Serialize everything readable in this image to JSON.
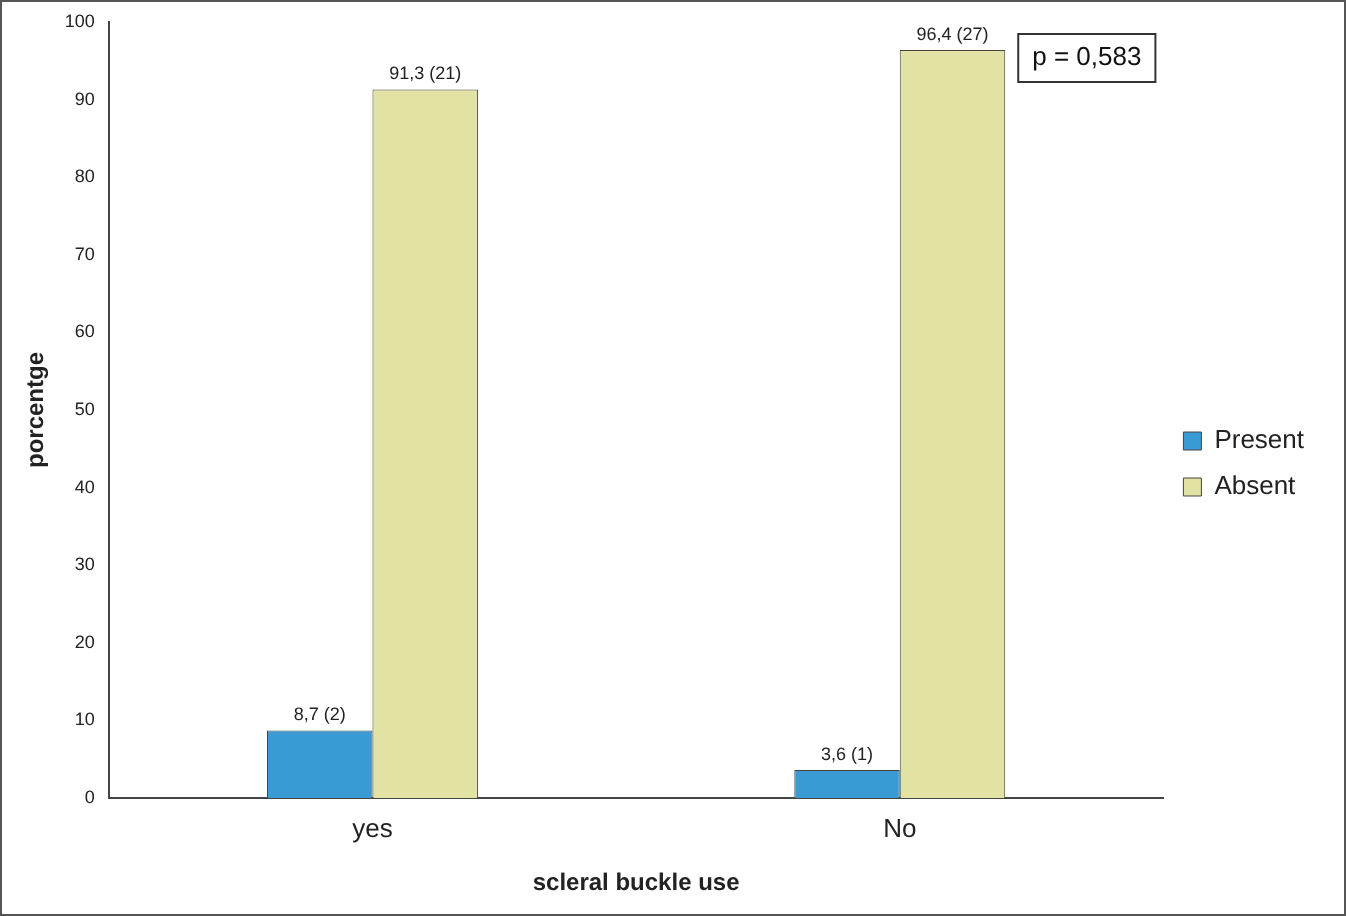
{
  "chart_data": {
    "type": "bar",
    "xlabel": "scleral buckle use",
    "ylabel": "porcentge",
    "categories": [
      "yes",
      "No"
    ],
    "series": [
      {
        "name": "Present",
        "color": "#3a9ad4",
        "values": [
          8.7,
          3.6
        ],
        "value_labels": [
          "8,7 (2)",
          "3,6 (1)"
        ]
      },
      {
        "name": "Absent",
        "color": "#e2e2a4",
        "values": [
          91.3,
          96.4
        ],
        "value_labels": [
          "91,3 (21)",
          "96,4 (27)"
        ]
      }
    ],
    "ylim": [
      0,
      100
    ],
    "yticks": [
      0,
      10,
      20,
      30,
      40,
      50,
      60,
      70,
      80,
      90,
      100
    ],
    "annotations": [
      "p = 0,583"
    ],
    "grid": false,
    "legend": "right"
  }
}
